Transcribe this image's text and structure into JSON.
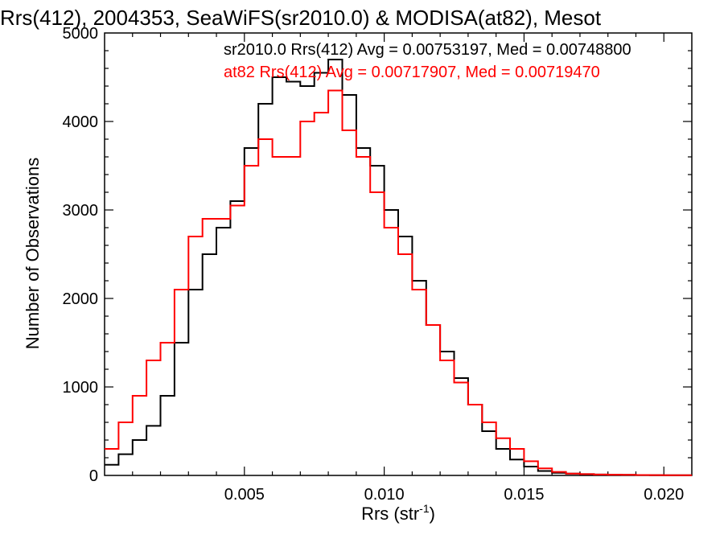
{
  "chart_data": {
    "type": "line",
    "title": "Rrs(412), 2004353, SeaWiFS(sr2010.0) & MODISA(at82), Mesot",
    "xlabel_base": "Rrs (str",
    "xlabel_sup": "-1",
    "xlabel_tail": ")",
    "ylabel": "Number of Observations",
    "xlim": [
      0.0,
      0.021
    ],
    "ylim": [
      0,
      5000
    ],
    "x_ticks": [
      {
        "value": 0.005,
        "label": "0.005"
      },
      {
        "value": 0.01,
        "label": "0.010"
      },
      {
        "value": 0.015,
        "label": "0.015"
      },
      {
        "value": 0.02,
        "label": "0.020"
      }
    ],
    "y_ticks": [
      {
        "value": 0,
        "label": "0"
      },
      {
        "value": 1000,
        "label": "1000"
      },
      {
        "value": 2000,
        "label": "2000"
      },
      {
        "value": 3000,
        "label": "3000"
      },
      {
        "value": 4000,
        "label": "4000"
      },
      {
        "value": 5000,
        "label": "5000"
      }
    ],
    "grid": false,
    "legend_position": "top-right",
    "series": [
      {
        "name": "sr2010.0 Rrs(412) Avg = 0.00753197, Med = 0.00748800",
        "color": "#000000",
        "x": [
          0.0,
          0.0005,
          0.001,
          0.0015,
          0.002,
          0.0025,
          0.003,
          0.0035,
          0.004,
          0.0045,
          0.005,
          0.0055,
          0.006,
          0.0065,
          0.007,
          0.0075,
          0.008,
          0.0085,
          0.009,
          0.0095,
          0.01,
          0.0105,
          0.011,
          0.0115,
          0.012,
          0.0125,
          0.013,
          0.0135,
          0.014,
          0.0145,
          0.015,
          0.0155,
          0.016,
          0.0165,
          0.017,
          0.0175,
          0.018,
          0.0185,
          0.019,
          0.0195,
          0.02,
          0.0205,
          0.021
        ],
        "y": [
          120,
          240,
          400,
          560,
          900,
          1500,
          2100,
          2500,
          2800,
          3100,
          3700,
          4200,
          4500,
          4450,
          4400,
          4550,
          4700,
          4300,
          3700,
          3500,
          3000,
          2700,
          2200,
          1700,
          1400,
          1100,
          800,
          500,
          300,
          180,
          100,
          50,
          30,
          20,
          15,
          10,
          8,
          6,
          5,
          4,
          3,
          2,
          2
        ]
      },
      {
        "name": "at82 Rrs(412) Avg = 0.00717907, Med = 0.00719470",
        "color": "#ff0000",
        "x": [
          0.0,
          0.0005,
          0.001,
          0.0015,
          0.002,
          0.0025,
          0.003,
          0.0035,
          0.004,
          0.0045,
          0.005,
          0.0055,
          0.006,
          0.0065,
          0.007,
          0.0075,
          0.008,
          0.0085,
          0.009,
          0.0095,
          0.01,
          0.0105,
          0.011,
          0.0115,
          0.012,
          0.0125,
          0.013,
          0.0135,
          0.014,
          0.0145,
          0.015,
          0.0155,
          0.016,
          0.0165,
          0.017,
          0.0175,
          0.018,
          0.0185,
          0.019,
          0.0195,
          0.02,
          0.0205,
          0.021
        ],
        "y": [
          300,
          600,
          900,
          1300,
          1500,
          2100,
          2700,
          2900,
          2900,
          3050,
          3500,
          3800,
          3600,
          3600,
          4000,
          4100,
          4350,
          3900,
          3600,
          3200,
          2800,
          2500,
          2100,
          1700,
          1300,
          1050,
          800,
          600,
          420,
          300,
          160,
          80,
          40,
          20,
          15,
          10,
          8,
          6,
          5,
          4,
          3,
          2,
          2
        ]
      }
    ]
  }
}
